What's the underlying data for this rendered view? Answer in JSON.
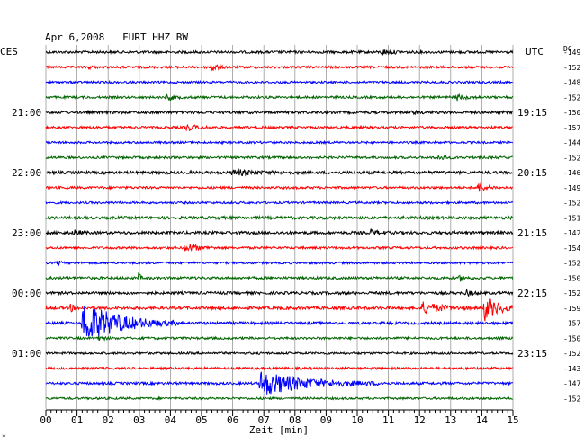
{
  "chart_data": {
    "type": "line",
    "title": "Apr 6,2008   FURT HHZ BW",
    "left_timezone_label": "CES",
    "right_timezone_label": "UTC",
    "offset_column_label": "DC",
    "xlabel": "Zeit [min]",
    "x_ticks": [
      "00",
      "01",
      "02",
      "03",
      "04",
      "05",
      "06",
      "07",
      "08",
      "09",
      "10",
      "11",
      "12",
      "13",
      "14",
      "15"
    ],
    "xlim": [
      0,
      15
    ],
    "grid": true,
    "corner_mark": "*",
    "trace_colors": [
      "#000000",
      "#ff0000",
      "#0000ff",
      "#006400"
    ],
    "left_hour_labels": [
      {
        "row": 4,
        "label": "21:00"
      },
      {
        "row": 8,
        "label": "22:00"
      },
      {
        "row": 12,
        "label": "23:00"
      },
      {
        "row": 16,
        "label": "00:00"
      },
      {
        "row": 20,
        "label": "01:00"
      }
    ],
    "right_hour_labels": [
      {
        "row": 4,
        "label": "19:15"
      },
      {
        "row": 8,
        "label": "20:15"
      },
      {
        "row": 12,
        "label": "21:15"
      },
      {
        "row": 16,
        "label": "22:15"
      },
      {
        "row": 20,
        "label": "23:15"
      }
    ],
    "traces": [
      {
        "row": 0,
        "dc": "-149",
        "noise": 1.4,
        "events": [
          {
            "t": 10.8,
            "amp": 2.5,
            "dur": 1.0
          }
        ]
      },
      {
        "row": 1,
        "dc": "-152",
        "noise": 1.3,
        "events": [
          {
            "t": 5.3,
            "amp": 6,
            "dur": 0.5
          },
          {
            "t": 1.4,
            "amp": 2,
            "dur": 0.3
          }
        ]
      },
      {
        "row": 2,
        "dc": "-148",
        "noise": 1.2,
        "events": []
      },
      {
        "row": 3,
        "dc": "-152",
        "noise": 1.3,
        "events": [
          {
            "t": 3.9,
            "amp": 3.5,
            "dur": 0.6
          },
          {
            "t": 13.2,
            "amp": 3,
            "dur": 0.8
          }
        ]
      },
      {
        "row": 4,
        "dc": "-150",
        "noise": 1.5,
        "events": [
          {
            "t": 11.8,
            "amp": 2,
            "dur": 0.5
          }
        ]
      },
      {
        "row": 5,
        "dc": "-157",
        "noise": 1.3,
        "events": [
          {
            "t": 4.5,
            "amp": 4,
            "dur": 0.8
          }
        ]
      },
      {
        "row": 6,
        "dc": "-144",
        "noise": 1.2,
        "events": []
      },
      {
        "row": 7,
        "dc": "-152",
        "noise": 1.3,
        "events": [
          {
            "t": 12.6,
            "amp": 2.5,
            "dur": 0.6
          }
        ]
      },
      {
        "row": 8,
        "dc": "-146",
        "noise": 1.6,
        "events": [
          {
            "t": 6.0,
            "amp": 3,
            "dur": 2.0
          }
        ]
      },
      {
        "row": 9,
        "dc": "-149",
        "noise": 1.3,
        "events": [
          {
            "t": 13.9,
            "amp": 5,
            "dur": 0.7
          }
        ]
      },
      {
        "row": 10,
        "dc": "-152",
        "noise": 1.2,
        "events": []
      },
      {
        "row": 11,
        "dc": "-151",
        "noise": 1.6,
        "events": []
      },
      {
        "row": 12,
        "dc": "-142",
        "noise": 1.6,
        "events": [
          {
            "t": 0.9,
            "amp": 3,
            "dur": 0.5
          },
          {
            "t": 10.4,
            "amp": 3.5,
            "dur": 0.7
          }
        ]
      },
      {
        "row": 13,
        "dc": "-154",
        "noise": 1.3,
        "events": [
          {
            "t": 4.5,
            "amp": 5,
            "dur": 1.0
          }
        ]
      },
      {
        "row": 14,
        "dc": "-152",
        "noise": 1.2,
        "events": [
          {
            "t": 0.4,
            "amp": 3,
            "dur": 0.2
          }
        ]
      },
      {
        "row": 15,
        "dc": "-150",
        "noise": 1.4,
        "events": [
          {
            "t": 3.0,
            "amp": 7,
            "dur": 0.1
          },
          {
            "t": 13.3,
            "amp": 3,
            "dur": 0.5
          }
        ]
      },
      {
        "row": 16,
        "dc": "-152",
        "noise": 1.5,
        "events": [
          {
            "t": 13.5,
            "amp": 3,
            "dur": 0.5
          }
        ]
      },
      {
        "row": 17,
        "dc": "-159",
        "noise": 1.6,
        "events": [
          {
            "t": 0.8,
            "amp": 4,
            "dur": 0.3
          },
          {
            "t": 12.1,
            "amp": 6,
            "dur": 1.8
          },
          {
            "t": 14.1,
            "amp": 14,
            "dur": 1.2
          }
        ]
      },
      {
        "row": 18,
        "dc": "-157",
        "noise": 1.5,
        "events": [
          {
            "t": 1.2,
            "amp": 24,
            "dur": 3.2
          }
        ]
      },
      {
        "row": 19,
        "dc": "-150",
        "noise": 1.3,
        "events": [
          {
            "t": 1.6,
            "amp": 2.5,
            "dur": 0.6
          }
        ]
      },
      {
        "row": 20,
        "dc": "-152",
        "noise": 1.2,
        "events": []
      },
      {
        "row": 21,
        "dc": "-143",
        "noise": 1.3,
        "events": []
      },
      {
        "row": 22,
        "dc": "-147",
        "noise": 1.4,
        "events": [
          {
            "t": 6.9,
            "amp": 14,
            "dur": 4.0
          }
        ]
      },
      {
        "row": 23,
        "dc": "-152",
        "noise": 1.2,
        "events": []
      }
    ]
  }
}
